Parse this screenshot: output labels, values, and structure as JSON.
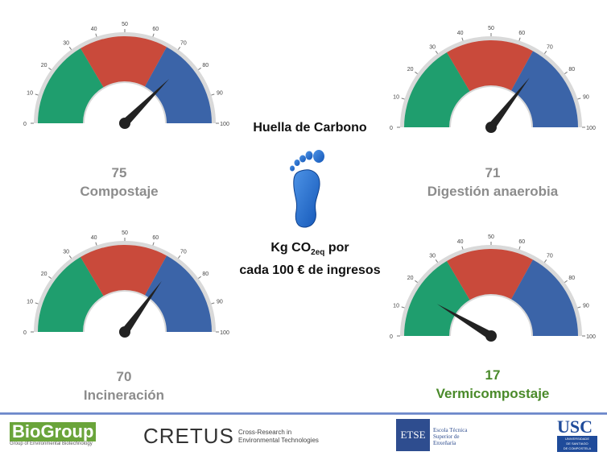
{
  "center": {
    "title": "Huella de Carbono",
    "unit_line1_pre": "Kg CO",
    "unit_sub": "2eq",
    "unit_line1_post": " por",
    "unit_line2": "cada 100 € de ingresos",
    "icon": "footprint-icon"
  },
  "gauges": [
    {
      "value": 75,
      "value_label": "75",
      "label": "Compostaje"
    },
    {
      "value": 71,
      "value_label": "71",
      "label": "Digestión anaerobia"
    },
    {
      "value": 70,
      "value_label": "70",
      "label": "Incineración"
    },
    {
      "value": 17,
      "value_label": "17",
      "label": "Vermicompostaje"
    }
  ],
  "scale": {
    "min": 0,
    "max": 100,
    "ticks": [
      "0",
      "10",
      "20",
      "30",
      "40",
      "50",
      "60",
      "70",
      "80",
      "90",
      "100"
    ],
    "bands": [
      {
        "from": 0,
        "to": 33,
        "color": "#1f9e6e"
      },
      {
        "from": 33,
        "to": 66,
        "color": "#c94a3b"
      },
      {
        "from": 66,
        "to": 100,
        "color": "#3b64a8"
      }
    ]
  },
  "footer": {
    "biogroup_name": "BioGroup",
    "biogroup_sub": "Group of Environmental Biotechnology",
    "cretus_name": "CRETUS",
    "cretus_desc1": "Cross-Research in",
    "cretus_desc2": "Environmental Technologies",
    "etse_letters": "ETSE",
    "etse_desc1": "Escola Técnica",
    "etse_desc2": "Superior de",
    "etse_desc3": "Enxeñaría",
    "usc_name": "USC",
    "usc_sub1": "UNIVERSIDADE",
    "usc_sub2": "DE SANTIAGO",
    "usc_sub3": "DE COMPOSTELA"
  }
}
